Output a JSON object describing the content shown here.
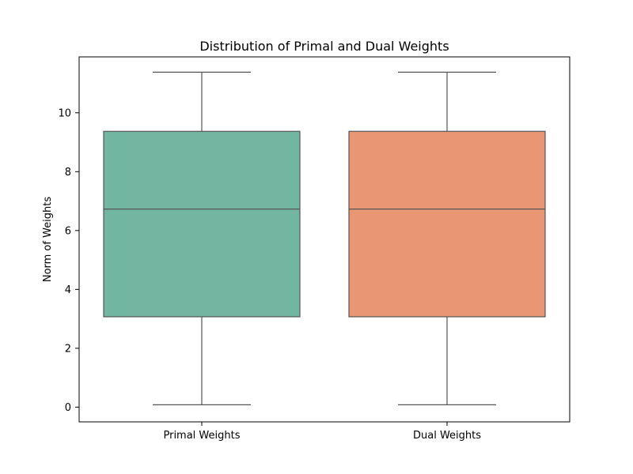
{
  "chart_data": {
    "type": "box",
    "title": "Distribution of Primal and Dual Weights",
    "xlabel": "",
    "ylabel": "Norm of Weights",
    "categories": [
      "Primal Weights",
      "Dual Weights"
    ],
    "ylim": [
      -0.5,
      11.9
    ],
    "yticks": [
      0,
      2,
      4,
      6,
      8,
      10
    ],
    "ytick_labels": [
      "0",
      "2",
      "4",
      "6",
      "8",
      "10"
    ],
    "grid": false,
    "boxes": [
      {
        "category": "Primal Weights",
        "whisker_low": 0.08,
        "q1": 3.07,
        "median": 6.73,
        "q3": 9.37,
        "whisker_high": 11.38,
        "color": "#72b6a1"
      },
      {
        "category": "Dual Weights",
        "whisker_low": 0.08,
        "q1": 3.07,
        "median": 6.73,
        "q3": 9.37,
        "whisker_high": 11.38,
        "color": "#e99675"
      }
    ],
    "line_color": "#555555"
  }
}
